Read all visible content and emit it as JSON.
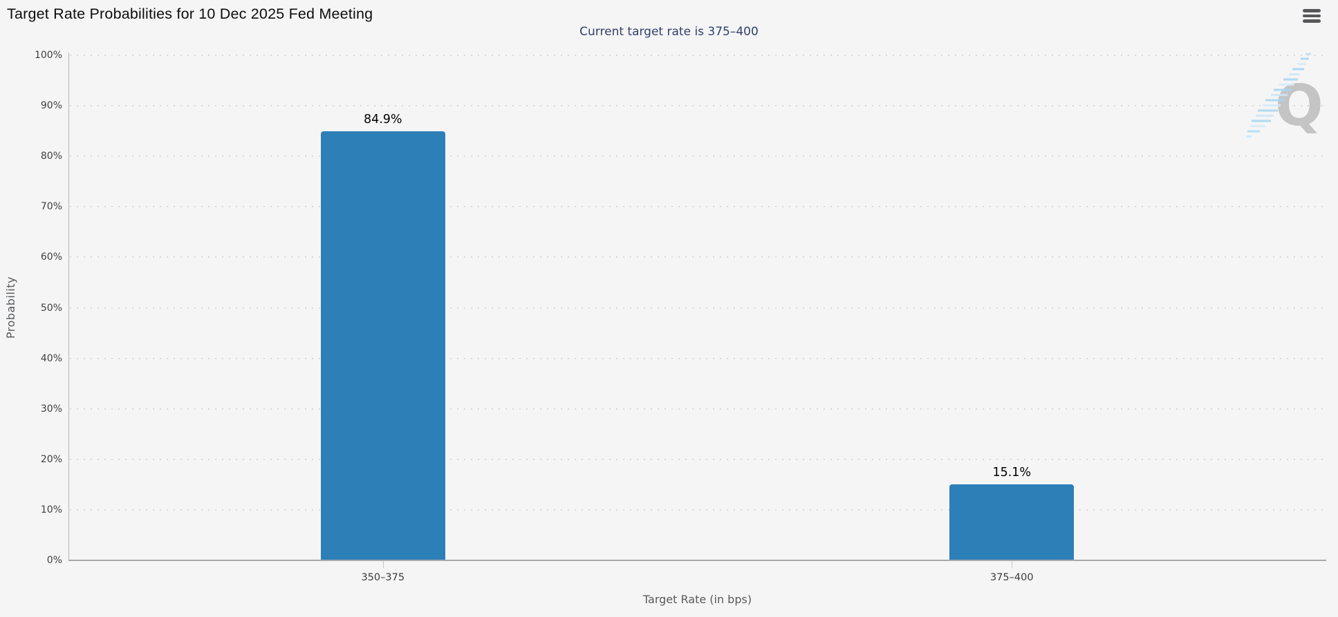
{
  "header": {
    "title": "Target Rate Probabilities for 10 Dec 2025 Fed Meeting",
    "menu_icon": "hamburger-menu-icon"
  },
  "chart_data": {
    "type": "bar",
    "title": "Target Rate Probabilities for 10 Dec 2025 Fed Meeting",
    "subtitle": "Current target rate is 375–400",
    "categories": [
      "350–375",
      "375–400"
    ],
    "values": [
      84.9,
      15.1
    ],
    "value_labels": [
      "84.9%",
      "15.1%"
    ],
    "xlabel": "Target Rate (in bps)",
    "ylabel": "Probability",
    "ylim": [
      0,
      100
    ],
    "ytick_step": 10,
    "ytick_labels": [
      "0%",
      "10%",
      "20%",
      "30%",
      "40%",
      "50%",
      "60%",
      "70%",
      "80%",
      "90%",
      "100%"
    ],
    "grid": "dotted-horizontal",
    "legend": "none",
    "colors": {
      "bar": "#2d7fb8",
      "subtitle_text": "#31406b",
      "title_text": "#0d0d0d",
      "axis_title_text": "#58595b",
      "tick_label_text": "#3f3f3f",
      "gridline_dots": "#d9d9d9",
      "axis_line": "#a8a8a8",
      "background": "#f5f5f6"
    }
  },
  "watermark": {
    "letter": "Q",
    "letter_color": "#c4c4c4",
    "stripe_color": "#aed9f2"
  }
}
